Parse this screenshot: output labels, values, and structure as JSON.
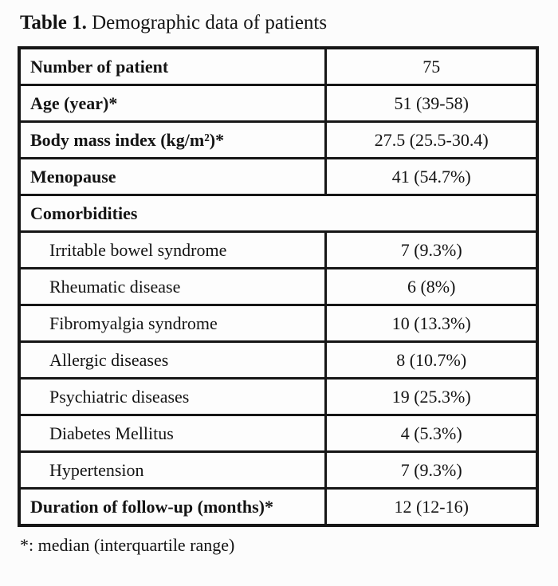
{
  "title": {
    "label": "Table 1.",
    "text": "Demographic data of patients"
  },
  "table": {
    "rows": [
      {
        "label": "Number of patient",
        "value": "75",
        "style": "bold"
      },
      {
        "label": "Age (year)*",
        "value": "51 (39-58)",
        "style": "bold"
      },
      {
        "label": "Body mass index (kg/m²)*",
        "value": "27.5 (25.5-30.4)",
        "style": "bold"
      },
      {
        "label": "Menopause",
        "value": "41 (54.7%)",
        "style": "bold"
      },
      {
        "label": "Comorbidities",
        "value": "",
        "style": "section"
      },
      {
        "label": "Irritable bowel syndrome",
        "value": "7 (9.3%)",
        "style": "indent"
      },
      {
        "label": "Rheumatic disease",
        "value": "6 (8%)",
        "style": "indent"
      },
      {
        "label": "Fibromyalgia syndrome",
        "value": "10 (13.3%)",
        "style": "indent"
      },
      {
        "label": "Allergic diseases",
        "value": "8 (10.7%)",
        "style": "indent"
      },
      {
        "label": "Psychiatric diseases",
        "value": "19 (25.3%)",
        "style": "indent"
      },
      {
        "label": "Diabetes Mellitus",
        "value": "4 (5.3%)",
        "style": "indent"
      },
      {
        "label": "Hypertension",
        "value": "7 (9.3%)",
        "style": "indent"
      },
      {
        "label": "Duration of follow-up (months)*",
        "value": "12 (12-16)",
        "style": "bold"
      }
    ]
  },
  "footnote": "*: median (interquartile range)"
}
